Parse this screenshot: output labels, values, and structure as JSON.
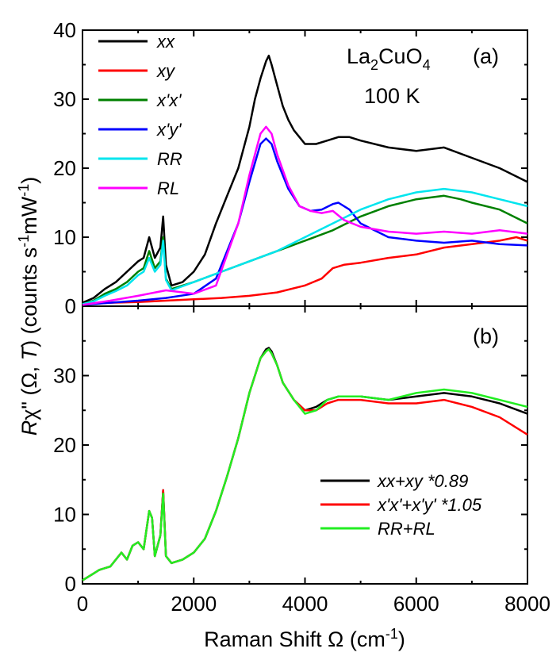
{
  "chart_data": [
    {
      "type": "line",
      "panel_label": "(a)",
      "annotation_compound": "La2CuO4",
      "annotation_temp": "100 K",
      "xlim": [
        0,
        8000
      ],
      "ylim": [
        0,
        40
      ],
      "yticks": [
        "0",
        "10",
        "20",
        "30",
        "40"
      ],
      "legend_position": "top-left",
      "series": [
        {
          "name": "xx",
          "color": "#000000",
          "x": [
            0,
            200,
            400,
            600,
            800,
            1000,
            1100,
            1200,
            1300,
            1400,
            1450,
            1500,
            1600,
            1800,
            2000,
            2200,
            2400,
            2600,
            2800,
            3000,
            3100,
            3200,
            3300,
            3350,
            3400,
            3500,
            3600,
            3700,
            3800,
            3900,
            4000,
            4200,
            4400,
            4600,
            4800,
            5000,
            5500,
            6000,
            6500,
            7000,
            7500,
            8000
          ],
          "y": [
            0.5,
            1.2,
            2.5,
            3.5,
            5,
            6.5,
            7,
            10,
            7,
            8.5,
            13,
            6,
            3,
            3.5,
            5,
            7.5,
            12,
            16,
            20,
            26,
            30,
            33,
            35.5,
            36.3,
            35,
            32,
            29,
            27,
            25.5,
            24.5,
            23.5,
            23.5,
            24,
            24.5,
            24.5,
            24,
            23,
            22.5,
            23,
            21.5,
            20,
            18
          ]
        },
        {
          "name": "xy",
          "color": "#ff0000",
          "x": [
            0,
            500,
            1000,
            1500,
            2000,
            2500,
            3000,
            3500,
            4000,
            4300,
            4500,
            4700,
            5000,
            5500,
            6000,
            6500,
            7000,
            7500,
            7800,
            8000
          ],
          "y": [
            0.3,
            0.5,
            0.6,
            0.8,
            1,
            1.2,
            1.5,
            2,
            3,
            4,
            5.5,
            6,
            6.3,
            7,
            7.5,
            8.5,
            9,
            9.5,
            10,
            9.5
          ]
        },
        {
          "name": "x'x'",
          "color": "#008000",
          "x": [
            0,
            200,
            400,
            600,
            800,
            1000,
            1100,
            1200,
            1300,
            1400,
            1450,
            1500,
            1600,
            2000,
            2500,
            3000,
            3500,
            4000,
            4500,
            5000,
            5500,
            6000,
            6500,
            6800,
            7000,
            7500,
            8000
          ],
          "y": [
            0.3,
            0.8,
            1.8,
            2.5,
            3.5,
            5,
            5.5,
            8,
            5.5,
            6.5,
            10,
            4,
            2.5,
            3.5,
            5,
            6.5,
            8,
            9.5,
            11,
            13,
            14.5,
            15.5,
            16,
            15.5,
            15,
            14,
            12
          ]
        },
        {
          "name": "x'y'",
          "color": "#0000ff",
          "x": [
            0,
            500,
            1000,
            1500,
            2000,
            2400,
            2800,
            3000,
            3200,
            3300,
            3400,
            3500,
            3700,
            3900,
            4100,
            4300,
            4500,
            4600,
            4800,
            5000,
            5500,
            6000,
            6500,
            7000,
            7500,
            8000
          ],
          "y": [
            0.2,
            0.5,
            0.8,
            1.2,
            1.8,
            4,
            12,
            18,
            23.5,
            24.3,
            23.5,
            21,
            17,
            14.5,
            13.8,
            14,
            14.8,
            15,
            14,
            12,
            10,
            9.5,
            9.2,
            9.5,
            9,
            8.8
          ]
        },
        {
          "name": "RR",
          "color": "#00e5ee",
          "x": [
            0,
            200,
            400,
            600,
            800,
            1000,
            1100,
            1200,
            1300,
            1400,
            1450,
            1500,
            1600,
            2000,
            2500,
            3000,
            3500,
            4000,
            4500,
            5000,
            5500,
            6000,
            6500,
            7000,
            7500,
            8000
          ],
          "y": [
            0.3,
            0.7,
            1.5,
            2.2,
            3,
            4.5,
            5,
            7,
            5,
            6,
            9.5,
            3.8,
            2.3,
            3.5,
            5,
            6.5,
            8,
            10,
            12,
            14,
            15.5,
            16.5,
            17,
            16.5,
            15.5,
            14.5
          ]
        },
        {
          "name": "RL",
          "color": "#ff00ff",
          "x": [
            0,
            500,
            1000,
            1500,
            2000,
            2400,
            2800,
            3000,
            3200,
            3300,
            3400,
            3500,
            3700,
            3900,
            4100,
            4300,
            4500,
            4700,
            5000,
            5500,
            6000,
            6500,
            7000,
            7500,
            8000
          ],
          "y": [
            0.2,
            0.8,
            1.5,
            2.3,
            1.8,
            3,
            12,
            19,
            25,
            26,
            25,
            22,
            17.5,
            14.5,
            13.8,
            13.5,
            13.8,
            12.5,
            11.5,
            10.8,
            10.5,
            10.8,
            10.5,
            11,
            10.5
          ]
        }
      ]
    },
    {
      "type": "line",
      "panel_label": "(b)",
      "xlabel": "Raman Shift Ω (cm⁻¹)",
      "xlim": [
        0,
        8000
      ],
      "ylim": [
        0,
        40
      ],
      "xticks": [
        "0",
        "2000",
        "4000",
        "6000",
        "8000"
      ],
      "yticks": [
        "0",
        "10",
        "20",
        "30"
      ],
      "legend_position": "bottom-right",
      "series": [
        {
          "name": "xx+xy *0.89",
          "color": "#000000",
          "x": [
            0,
            200,
            300,
            500,
            600,
            700,
            800,
            900,
            1000,
            1100,
            1200,
            1250,
            1300,
            1400,
            1450,
            1500,
            1600,
            1800,
            2000,
            2200,
            2400,
            2600,
            2800,
            3000,
            3200,
            3300,
            3350,
            3400,
            3500,
            3600,
            3800,
            4000,
            4200,
            4400,
            4600,
            5000,
            5500,
            6000,
            6500,
            7000,
            7500,
            8000
          ],
          "y": [
            0.5,
            1.5,
            2,
            2.5,
            3.5,
            4.5,
            3.5,
            5.5,
            6,
            5,
            10.5,
            9.5,
            4,
            7,
            13.5,
            4,
            3,
            3.5,
            4.5,
            6.5,
            10.5,
            15.5,
            21,
            27.5,
            32.5,
            33.8,
            34,
            33.5,
            31.5,
            29,
            26.5,
            25,
            25.5,
            26.5,
            27,
            27,
            26.5,
            27,
            27.5,
            27,
            26,
            24.5
          ]
        },
        {
          "name": "x'x'+x'y' *1.05",
          "color": "#ff0000",
          "x": [
            0,
            200,
            300,
            500,
            600,
            700,
            800,
            900,
            1000,
            1100,
            1200,
            1250,
            1300,
            1400,
            1450,
            1500,
            1600,
            1800,
            2000,
            2200,
            2400,
            2600,
            2800,
            3000,
            3200,
            3300,
            3350,
            3400,
            3500,
            3600,
            3800,
            4000,
            4200,
            4400,
            4600,
            5000,
            5500,
            6000,
            6500,
            7000,
            7500,
            8000
          ],
          "y": [
            0.5,
            1.5,
            2,
            2.5,
            3.5,
            4.5,
            3.5,
            5.5,
            6,
            5,
            10.5,
            9.5,
            4,
            7,
            13.5,
            4,
            3,
            3.5,
            4.5,
            6.5,
            10.5,
            15.5,
            21,
            27.5,
            32.5,
            33.5,
            33.8,
            33.2,
            31.5,
            29,
            26.5,
            25,
            25,
            26,
            26.5,
            26.5,
            26,
            26,
            26.5,
            25.5,
            24,
            21.5
          ]
        },
        {
          "name": "RR+RL",
          "color": "#22ee22",
          "x": [
            0,
            200,
            300,
            500,
            600,
            700,
            800,
            900,
            1000,
            1100,
            1200,
            1250,
            1300,
            1400,
            1450,
            1500,
            1600,
            1800,
            2000,
            2200,
            2400,
            2600,
            2800,
            3000,
            3200,
            3300,
            3350,
            3400,
            3500,
            3600,
            3800,
            4000,
            4200,
            4400,
            4600,
            5000,
            5500,
            6000,
            6500,
            7000,
            7500,
            8000
          ],
          "y": [
            0.5,
            1.5,
            2,
            2.5,
            3.5,
            4.5,
            3.5,
            5.5,
            6,
            5,
            10.5,
            9.5,
            4,
            7,
            13,
            4,
            3,
            3.5,
            4.5,
            6.5,
            10.5,
            15.5,
            21,
            27.5,
            32.5,
            33.5,
            33.8,
            33.2,
            31.5,
            29,
            26.5,
            24.5,
            25,
            26.5,
            27,
            27,
            26.5,
            27.5,
            28,
            27.5,
            26.5,
            25.5
          ]
        }
      ]
    }
  ],
  "ylabel_shared": "Rχ\" (Ω, T) (counts s⁻¹mW⁻¹)"
}
